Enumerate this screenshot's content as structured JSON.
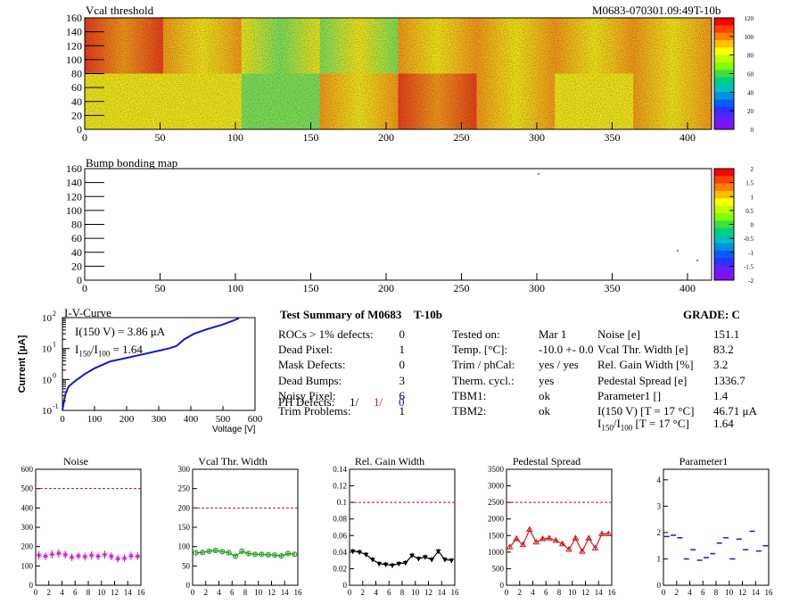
{
  "vcal_map": {
    "title": "Vcal threshold",
    "module_id": "M0683-070301.09:49T-10b",
    "x_ticks": [
      "0",
      "50",
      "100",
      "150",
      "200",
      "250",
      "300",
      "350",
      "400"
    ],
    "y_ticks": [
      "0",
      "20",
      "40",
      "60",
      "80",
      "100",
      "120",
      "140",
      "160"
    ],
    "palette_labels": [
      "120",
      "100",
      "80",
      "60",
      "40",
      "20",
      "0"
    ],
    "colors": {
      "red": "#e8401c",
      "orange": "#f49a1c",
      "yellow": "#f2e61c",
      "green": "#7ee05a"
    }
  },
  "bump_map": {
    "title": "Bump bonding map",
    "x_ticks": [
      "0",
      "50",
      "100",
      "150",
      "200",
      "250",
      "300",
      "350",
      "400"
    ],
    "y_ticks": [
      "0",
      "20",
      "40",
      "60",
      "80",
      "100",
      "120",
      "140",
      "160"
    ],
    "palette_labels": [
      "2",
      "1.5",
      "1",
      "0.5",
      "0",
      "-0.5",
      "-1",
      "-1.5",
      "-2"
    ]
  },
  "iv_curve": {
    "title": "I-V-Curve",
    "ylabel": "Current [μA]",
    "xlabel": "Voltage [V]",
    "x_ticks": [
      "0",
      "100",
      "200",
      "300",
      "400",
      "500",
      "600"
    ],
    "y_exp": [
      "-1",
      "0",
      "1",
      "2"
    ],
    "y_base": "10",
    "line1_label": "I(150 V) = 3.86 μA",
    "ratio_I": "I",
    "ratio_sub1": "150",
    "ratio_sub2": "100",
    "ratio_value": "=  1.64",
    "line_color": "#0a1ccc"
  },
  "summary": {
    "title": "Test Summary of M0683",
    "module_type": "T-10b",
    "grade_label": "GRADE:  C",
    "rows": [
      {
        "label": "ROCs > 1% defects:",
        "value": "0"
      },
      {
        "label": "Dead Pixel:",
        "value": "1"
      },
      {
        "label": "Mask Defects:",
        "value": "0"
      },
      {
        "label": "Dead Bumps:",
        "value": "3"
      },
      {
        "label": "Noisy Pixel:",
        "value": "6"
      },
      {
        "label": "Trim Problems:",
        "value": "1"
      }
    ],
    "ph_label": "PH Defects:",
    "ph_values": [
      "1/",
      "1/",
      "0"
    ],
    "ph_colors": [
      "#000000",
      "#d41414",
      "#1414d4"
    ],
    "mid_rows": [
      {
        "label": "Tested on:",
        "value": "Mar 1"
      },
      {
        "label": "Temp. [°C]:",
        "value": "-10.0 +- 0.0"
      },
      {
        "label": "Trim / phCal:",
        "value": "yes / yes"
      },
      {
        "label": "Therm. cycl.:",
        "value": "yes"
      },
      {
        "label": "TBM1:",
        "value": "ok"
      },
      {
        "label": "TBM2:",
        "value": "ok"
      }
    ],
    "right_rows": [
      {
        "label": "Noise [e]",
        "value": "151.1"
      },
      {
        "label": "Vcal Thr. Width [e]",
        "value": "83.2"
      },
      {
        "label": "Rel. Gain Width [%]",
        "value": "3.2"
      },
      {
        "label": "Pedestal Spread [e]",
        "value": "1336.7"
      },
      {
        "label": "Parameter1 []",
        "value": "1.4"
      },
      {
        "label": "I(150 V) [T = 17 °C]",
        "value": "46.71 μA"
      }
    ],
    "ratio_row": {
      "i": "I",
      "sub1": "150",
      "sep": "/I",
      "sub2": "100",
      "rest": " [T = 17 °C]",
      "value": "1.64"
    }
  },
  "chart_data": [
    {
      "type": "scatter",
      "title": "Noise",
      "xlim": [
        0,
        16
      ],
      "ylim": [
        0,
        600
      ],
      "x_ticks": [
        "0",
        "2",
        "4",
        "6",
        "8",
        "10",
        "12",
        "14",
        "16"
      ],
      "y_ticks": [
        "0",
        "100",
        "200",
        "300",
        "400",
        "500",
        "600"
      ],
      "x": [
        0,
        1,
        2,
        3,
        4,
        5,
        6,
        7,
        8,
        9,
        10,
        11,
        12,
        13,
        14,
        15
      ],
      "values": [
        155,
        150,
        160,
        165,
        158,
        145,
        152,
        148,
        155,
        150,
        158,
        150,
        138,
        140,
        152,
        150
      ],
      "errors": [
        22,
        20,
        22,
        22,
        22,
        20,
        20,
        20,
        22,
        20,
        22,
        20,
        20,
        20,
        22,
        20
      ],
      "threshold": 500,
      "color": "#cc22cc",
      "marker": "star",
      "connect": false
    },
    {
      "type": "line",
      "title": "Vcal Thr. Width",
      "xlim": [
        0,
        16
      ],
      "ylim": [
        0,
        300
      ],
      "x_ticks": [
        "0",
        "2",
        "4",
        "6",
        "8",
        "10",
        "12",
        "14",
        "16"
      ],
      "y_ticks": [
        "0",
        "50",
        "100",
        "150",
        "200",
        "250",
        "300"
      ],
      "x": [
        0,
        1,
        2,
        3,
        4,
        5,
        6,
        7,
        8,
        9,
        10,
        11,
        12,
        13,
        14,
        15
      ],
      "values": [
        84,
        85,
        88,
        90,
        87,
        84,
        75,
        88,
        82,
        80,
        80,
        79,
        78,
        76,
        82,
        80
      ],
      "errors": [
        5,
        5,
        5,
        5,
        5,
        5,
        5,
        5,
        5,
        5,
        5,
        5,
        5,
        5,
        5,
        5
      ],
      "threshold": 200,
      "color": "#1a9a1a",
      "marker": "circle",
      "connect": true
    },
    {
      "type": "line",
      "title": "Rel. Gain Width",
      "xlim": [
        0,
        16
      ],
      "ylim": [
        0,
        0.14
      ],
      "x_ticks": [
        "0",
        "2",
        "4",
        "6",
        "8",
        "10",
        "12",
        "14",
        "16"
      ],
      "y_ticks": [
        "0",
        "0.02",
        "0.04",
        "0.06",
        "0.08",
        "0.1",
        "0.12",
        "0.14"
      ],
      "x": [
        0,
        1,
        2,
        3,
        4,
        5,
        6,
        7,
        8,
        9,
        10,
        11,
        12,
        13,
        14,
        15
      ],
      "values": [
        0.041,
        0.04,
        0.037,
        0.031,
        0.026,
        0.025,
        0.024,
        0.026,
        0.027,
        0.036,
        0.032,
        0.034,
        0.031,
        0.041,
        0.031,
        0.03
      ],
      "errors": [
        0.003,
        0.003,
        0.003,
        0.003,
        0.003,
        0.003,
        0.003,
        0.003,
        0.003,
        0.003,
        0.003,
        0.003,
        0.003,
        0.003,
        0.003,
        0.003
      ],
      "threshold": 0.1,
      "color": "#000000",
      "marker": "triangle-down",
      "connect": true
    },
    {
      "type": "line",
      "title": "Pedestal Spread",
      "xlim": [
        0,
        16
      ],
      "ylim": [
        0,
        3500
      ],
      "x_ticks": [
        "0",
        "2",
        "4",
        "6",
        "8",
        "10",
        "12",
        "14",
        "16"
      ],
      "y_ticks": [
        "0",
        "500",
        "1000",
        "1500",
        "2000",
        "2500",
        "3000",
        "3500"
      ],
      "x": [
        0,
        1,
        2,
        3,
        4,
        5,
        6,
        7,
        8,
        9,
        10,
        11,
        12,
        13,
        14,
        15
      ],
      "values": [
        1150,
        1400,
        1220,
        1680,
        1300,
        1400,
        1420,
        1350,
        1250,
        1080,
        1420,
        1020,
        1420,
        1120,
        1550,
        1550
      ],
      "errors": [
        60,
        60,
        60,
        60,
        60,
        60,
        60,
        60,
        60,
        60,
        60,
        60,
        60,
        60,
        60,
        60
      ],
      "threshold": 2500,
      "color": "#cc1a1a",
      "marker": "triangle-up",
      "connect": true
    },
    {
      "type": "scatter",
      "title": "Parameter1",
      "xlim": [
        0,
        16
      ],
      "ylim": [
        0,
        4.4
      ],
      "x_ticks": [
        "0",
        "2",
        "4",
        "6",
        "8",
        "10",
        "12",
        "14",
        "16"
      ],
      "y_ticks": [
        "0",
        "1",
        "2",
        "3",
        "4"
      ],
      "x": [
        0,
        1,
        2,
        3,
        4,
        5,
        6,
        7,
        8,
        9,
        10,
        11,
        12,
        13,
        14,
        15
      ],
      "values": [
        1.85,
        1.9,
        1.8,
        1.0,
        1.35,
        0.95,
        1.05,
        1.2,
        1.6,
        1.8,
        1.0,
        1.75,
        1.35,
        2.05,
        1.3,
        1.5
      ],
      "threshold": null,
      "color": "#1a1acc",
      "marker": "dash",
      "connect": false
    }
  ]
}
